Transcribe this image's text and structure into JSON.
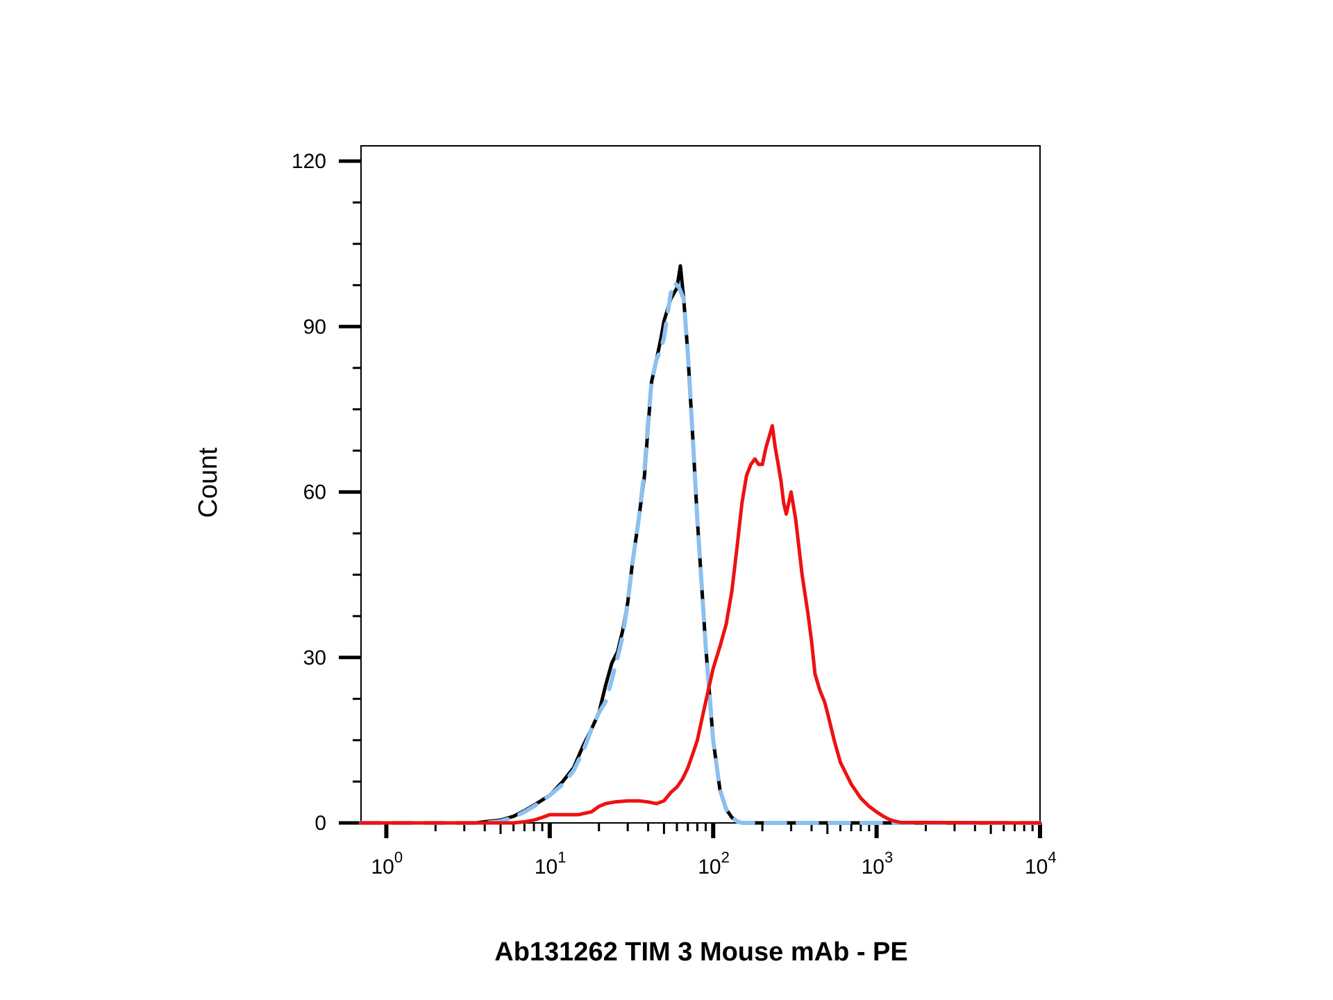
{
  "chart_data": {
    "type": "line",
    "title": "",
    "xlabel": "Ab131262 TIM 3 Mouse mAb - PE",
    "ylabel": "Count",
    "xscale": "log",
    "xlim": [
      0.7,
      10000
    ],
    "ylim": [
      0,
      120
    ],
    "y_ticks": [
      0,
      30,
      60,
      90,
      120
    ],
    "x_ticks": [
      {
        "value": 1,
        "base": "10",
        "exp": "0"
      },
      {
        "value": 10,
        "base": "10",
        "exp": "1"
      },
      {
        "value": 100,
        "base": "10",
        "exp": "2"
      },
      {
        "value": 1000,
        "base": "10",
        "exp": "3"
      },
      {
        "value": 10000,
        "base": "10",
        "exp": "4"
      }
    ],
    "grid": false,
    "legend": "none",
    "series": [
      {
        "color": "#000000",
        "style": "solid",
        "x": [
          0.7,
          3.5,
          4,
          5,
          6,
          7,
          8,
          10,
          12,
          14,
          16,
          18,
          20,
          22,
          24,
          26,
          28,
          30,
          32,
          35,
          38,
          40,
          42,
          45,
          48,
          50,
          55,
          60,
          63,
          66,
          70,
          75,
          80,
          90,
          100,
          110,
          120,
          130,
          140,
          150,
          200,
          300,
          1000,
          10000
        ],
        "y": [
          0,
          0,
          0.2,
          0.5,
          1.2,
          2.2,
          3.2,
          5,
          7.5,
          10,
          14,
          17,
          20,
          25,
          29,
          31,
          35,
          40,
          47,
          55,
          63,
          72,
          80,
          84,
          88,
          91,
          95,
          97,
          101,
          95,
          85,
          70,
          55,
          32,
          15,
          6,
          2.5,
          1,
          0.3,
          0,
          0,
          0,
          0,
          0
        ]
      },
      {
        "color": "#8cc0ef",
        "style": "dashed",
        "x": [
          0.7,
          4,
          5,
          6,
          7,
          8,
          10,
          12,
          14,
          16,
          18,
          20,
          22,
          24,
          26,
          28,
          30,
          32,
          35,
          38,
          40,
          42,
          45,
          48,
          50,
          55,
          58,
          62,
          66,
          70,
          75,
          80,
          90,
          100,
          110,
          120,
          130,
          140,
          150,
          200,
          300,
          1000,
          10000
        ],
        "y": [
          0,
          0,
          0.3,
          1,
          2,
          3,
          5,
          7,
          9.5,
          13,
          17,
          20,
          22,
          26,
          30,
          34,
          40,
          47,
          55,
          64,
          73,
          80,
          84,
          86,
          88,
          96,
          98,
          97,
          95,
          85,
          70,
          55,
          32,
          15,
          6,
          2.5,
          1,
          0.3,
          0,
          0,
          0,
          0,
          0
        ]
      },
      {
        "color": "#ee1111",
        "style": "solid",
        "x": [
          0.7,
          5,
          6,
          7,
          8,
          9,
          10,
          12,
          15,
          18,
          20,
          22,
          25,
          30,
          35,
          40,
          45,
          50,
          55,
          60,
          65,
          70,
          75,
          80,
          90,
          100,
          110,
          120,
          130,
          140,
          150,
          160,
          170,
          180,
          190,
          200,
          210,
          220,
          230,
          240,
          250,
          260,
          270,
          280,
          300,
          320,
          350,
          380,
          400,
          420,
          450,
          480,
          500,
          550,
          600,
          700,
          800,
          900,
          1000,
          1100,
          1200,
          1300,
          1400,
          10000
        ],
        "y": [
          0,
          0,
          0,
          0.2,
          0.5,
          1,
          1.5,
          1.5,
          1.5,
          2,
          3,
          3.5,
          3.8,
          4,
          4,
          3.8,
          3.5,
          4,
          5.5,
          6.5,
          8,
          10,
          12.5,
          15,
          22,
          28,
          32,
          36,
          42,
          50,
          58,
          63,
          65,
          66,
          65,
          65,
          68,
          70,
          72,
          68,
          65,
          62,
          58,
          56,
          60,
          55,
          45,
          38,
          33,
          27,
          24,
          22,
          20,
          15,
          11,
          7,
          4.5,
          3,
          2,
          1.2,
          0.6,
          0.3,
          0.1,
          0
        ]
      }
    ]
  }
}
